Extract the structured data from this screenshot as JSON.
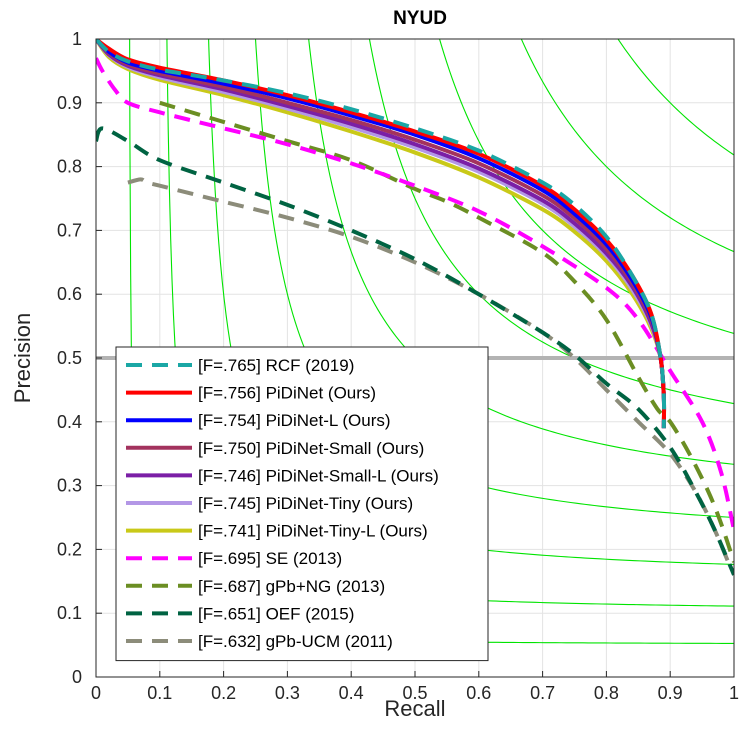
{
  "chart_data": {
    "type": "line",
    "title": "NYUD",
    "xlabel": "Recall",
    "ylabel": "Precision",
    "xlim": [
      0,
      1
    ],
    "ylim": [
      0,
      1
    ],
    "xticks": [
      "0",
      "0.1",
      "0.2",
      "0.3",
      "0.4",
      "0.5",
      "0.6",
      "0.7",
      "0.8",
      "0.9",
      "1"
    ],
    "yticks": [
      "0",
      "0.1",
      "0.2",
      "0.3",
      "0.4",
      "0.5",
      "0.6",
      "0.7",
      "0.8",
      "0.9",
      "1"
    ],
    "grid": true,
    "legend_position": "bottom-left",
    "iso_f_contours": [
      0.1,
      0.2,
      0.3,
      0.4,
      0.5,
      0.6,
      0.7,
      0.8,
      0.9
    ],
    "iso_f_color": "#00e400",
    "reference_line": {
      "y": 0.5,
      "color": "#b3b3b3"
    },
    "series": [
      {
        "name": "[F=.765] RCF (2019)",
        "color": "#1aa7a5",
        "dash": "dashed",
        "x": [
          0.0,
          0.02,
          0.05,
          0.1,
          0.2,
          0.3,
          0.4,
          0.5,
          0.6,
          0.7,
          0.75,
          0.8,
          0.84,
          0.87,
          0.885,
          0.89,
          0.89
        ],
        "y": [
          1.0,
          0.98,
          0.965,
          0.952,
          0.935,
          0.915,
          0.89,
          0.86,
          0.825,
          0.775,
          0.74,
          0.69,
          0.63,
          0.57,
          0.5,
          0.44,
          0.39
        ]
      },
      {
        "name": "[F=.756] PiDiNet (Ours)",
        "color": "#ff0000",
        "dash": "solid",
        "x": [
          0.0,
          0.02,
          0.05,
          0.1,
          0.2,
          0.3,
          0.4,
          0.5,
          0.6,
          0.7,
          0.75,
          0.8,
          0.84,
          0.87,
          0.885,
          0.89,
          0.89
        ],
        "y": [
          1.0,
          0.985,
          0.968,
          0.955,
          0.935,
          0.912,
          0.885,
          0.855,
          0.82,
          0.77,
          0.733,
          0.685,
          0.63,
          0.57,
          0.5,
          0.44,
          0.39
        ]
      },
      {
        "name": "[F=.754] PiDiNet-L (Ours)",
        "color": "#0000ff",
        "dash": "solid",
        "x": [
          0.0,
          0.02,
          0.05,
          0.1,
          0.2,
          0.3,
          0.4,
          0.5,
          0.6,
          0.7,
          0.75,
          0.8,
          0.84,
          0.87,
          0.885,
          0.89,
          0.89
        ],
        "y": [
          1.0,
          0.98,
          0.963,
          0.95,
          0.93,
          0.907,
          0.88,
          0.85,
          0.813,
          0.763,
          0.726,
          0.678,
          0.623,
          0.565,
          0.5,
          0.44,
          0.39
        ]
      },
      {
        "name": "[F=.750] PiDiNet-Small (Ours)",
        "color": "#a3325e",
        "dash": "solid",
        "x": [
          0.0,
          0.02,
          0.05,
          0.1,
          0.2,
          0.3,
          0.4,
          0.5,
          0.6,
          0.7,
          0.75,
          0.8,
          0.84,
          0.87,
          0.885,
          0.89,
          0.89
        ],
        "y": [
          1.0,
          0.978,
          0.96,
          0.946,
          0.925,
          0.9,
          0.873,
          0.842,
          0.805,
          0.755,
          0.719,
          0.671,
          0.618,
          0.56,
          0.5,
          0.44,
          0.39
        ]
      },
      {
        "name": "[F=.746] PiDiNet-Small-L (Ours)",
        "color": "#7b1fa6",
        "dash": "solid",
        "x": [
          0.0,
          0.02,
          0.05,
          0.1,
          0.2,
          0.3,
          0.4,
          0.5,
          0.6,
          0.7,
          0.75,
          0.8,
          0.84,
          0.87,
          0.885,
          0.89,
          0.89
        ],
        "y": [
          1.0,
          0.976,
          0.958,
          0.943,
          0.921,
          0.895,
          0.867,
          0.835,
          0.797,
          0.747,
          0.711,
          0.664,
          0.613,
          0.555,
          0.5,
          0.44,
          0.39
        ]
      },
      {
        "name": "[F=.745] PiDiNet-Tiny (Ours)",
        "color": "#b397e6",
        "dash": "solid",
        "x": [
          0.0,
          0.02,
          0.05,
          0.1,
          0.2,
          0.3,
          0.4,
          0.5,
          0.6,
          0.7,
          0.75,
          0.8,
          0.84,
          0.87,
          0.885,
          0.89,
          0.89
        ],
        "y": [
          1.0,
          0.975,
          0.956,
          0.94,
          0.917,
          0.891,
          0.862,
          0.83,
          0.792,
          0.742,
          0.706,
          0.66,
          0.608,
          0.552,
          0.5,
          0.44,
          0.39
        ]
      },
      {
        "name": "[F=.741] PiDiNet-Tiny-L (Ours)",
        "color": "#c9c918",
        "dash": "solid",
        "x": [
          0.0,
          0.02,
          0.05,
          0.1,
          0.2,
          0.3,
          0.4,
          0.5,
          0.6,
          0.7,
          0.75,
          0.8,
          0.84,
          0.87,
          0.885,
          0.89,
          0.89
        ],
        "y": [
          1.0,
          0.972,
          0.953,
          0.936,
          0.912,
          0.885,
          0.855,
          0.822,
          0.783,
          0.733,
          0.698,
          0.652,
          0.601,
          0.547,
          0.5,
          0.44,
          0.39
        ]
      },
      {
        "name": "[F=.695] SE (2013)",
        "color": "#ff00ff",
        "dash": "dashed",
        "x": [
          0.0,
          0.01,
          0.03,
          0.05,
          0.1,
          0.2,
          0.3,
          0.4,
          0.5,
          0.6,
          0.7,
          0.8,
          0.85,
          0.9,
          0.95,
          0.98,
          1.0
        ],
        "y": [
          0.97,
          0.95,
          0.92,
          0.9,
          0.885,
          0.86,
          0.835,
          0.805,
          0.77,
          0.73,
          0.675,
          0.61,
          0.56,
          0.48,
          0.4,
          0.32,
          0.23
        ]
      },
      {
        "name": "[F=.687] gPb+NG (2013)",
        "color": "#6b8e23",
        "dash": "dashed",
        "x": [
          0.1,
          0.2,
          0.3,
          0.4,
          0.5,
          0.55,
          0.6,
          0.7,
          0.75,
          0.8,
          0.85,
          0.88,
          0.9,
          0.93,
          0.96,
          0.98,
          1.0
        ],
        "y": [
          0.9,
          0.87,
          0.84,
          0.81,
          0.765,
          0.745,
          0.72,
          0.665,
          0.62,
          0.56,
          0.47,
          0.42,
          0.4,
          0.35,
          0.29,
          0.24,
          0.18
        ]
      },
      {
        "name": "[F=.651] OEF (2015)",
        "color": "#006342",
        "dash": "dashed",
        "x": [
          0.0,
          0.01,
          0.05,
          0.1,
          0.2,
          0.3,
          0.4,
          0.5,
          0.6,
          0.7,
          0.75,
          0.8,
          0.85,
          0.9,
          0.94,
          0.97,
          1.0
        ],
        "y": [
          0.84,
          0.86,
          0.84,
          0.81,
          0.775,
          0.74,
          0.7,
          0.655,
          0.6,
          0.54,
          0.505,
          0.46,
          0.42,
          0.36,
          0.29,
          0.23,
          0.16
        ]
      },
      {
        "name": "[F=.632] gPb-UCM (2011)",
        "color": "#8c8c7a",
        "dash": "dashed",
        "x": [
          0.05,
          0.07,
          0.08,
          0.1,
          0.2,
          0.3,
          0.4,
          0.5,
          0.6,
          0.7,
          0.75,
          0.8,
          0.85,
          0.9,
          0.94,
          0.97,
          0.995
        ],
        "y": [
          0.775,
          0.78,
          0.775,
          0.77,
          0.745,
          0.72,
          0.69,
          0.65,
          0.6,
          0.54,
          0.5,
          0.45,
          0.4,
          0.35,
          0.29,
          0.23,
          0.17
        ]
      }
    ]
  }
}
